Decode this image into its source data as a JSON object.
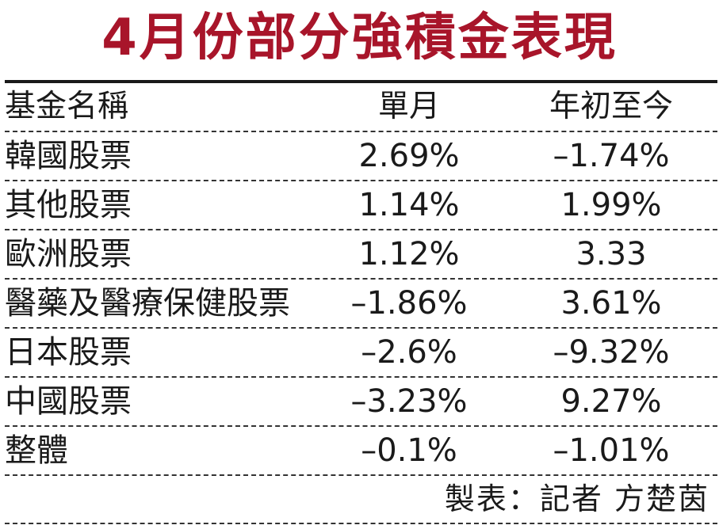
{
  "title": "4月份部分強積金表現",
  "table": {
    "headers": {
      "name": "基金名稱",
      "month": "單月",
      "ytd": "年初至今"
    },
    "rows": [
      {
        "name": "韓國股票",
        "month": "2.69%",
        "ytd": "–1.74%"
      },
      {
        "name": "其他股票",
        "month": "1.14%",
        "ytd": "1.99%"
      },
      {
        "name": "歐洲股票",
        "month": "1.12%",
        "ytd": "3.33"
      },
      {
        "name": "醫藥及醫療保健股票",
        "month": "–1.86%",
        "ytd": "3.61%"
      },
      {
        "name": "日本股票",
        "month": "–2.6%",
        "ytd": "–9.32%"
      },
      {
        "name": "中國股票",
        "month": "–3.23%",
        "ytd": "9.27%"
      },
      {
        "name": "整體",
        "month": "–0.1%",
        "ytd": "–1.01%"
      }
    ]
  },
  "footer": "製表：記者 方楚茵",
  "colors": {
    "title": "#a8152a",
    "text": "#1a1a1a",
    "rule": "#333333"
  }
}
